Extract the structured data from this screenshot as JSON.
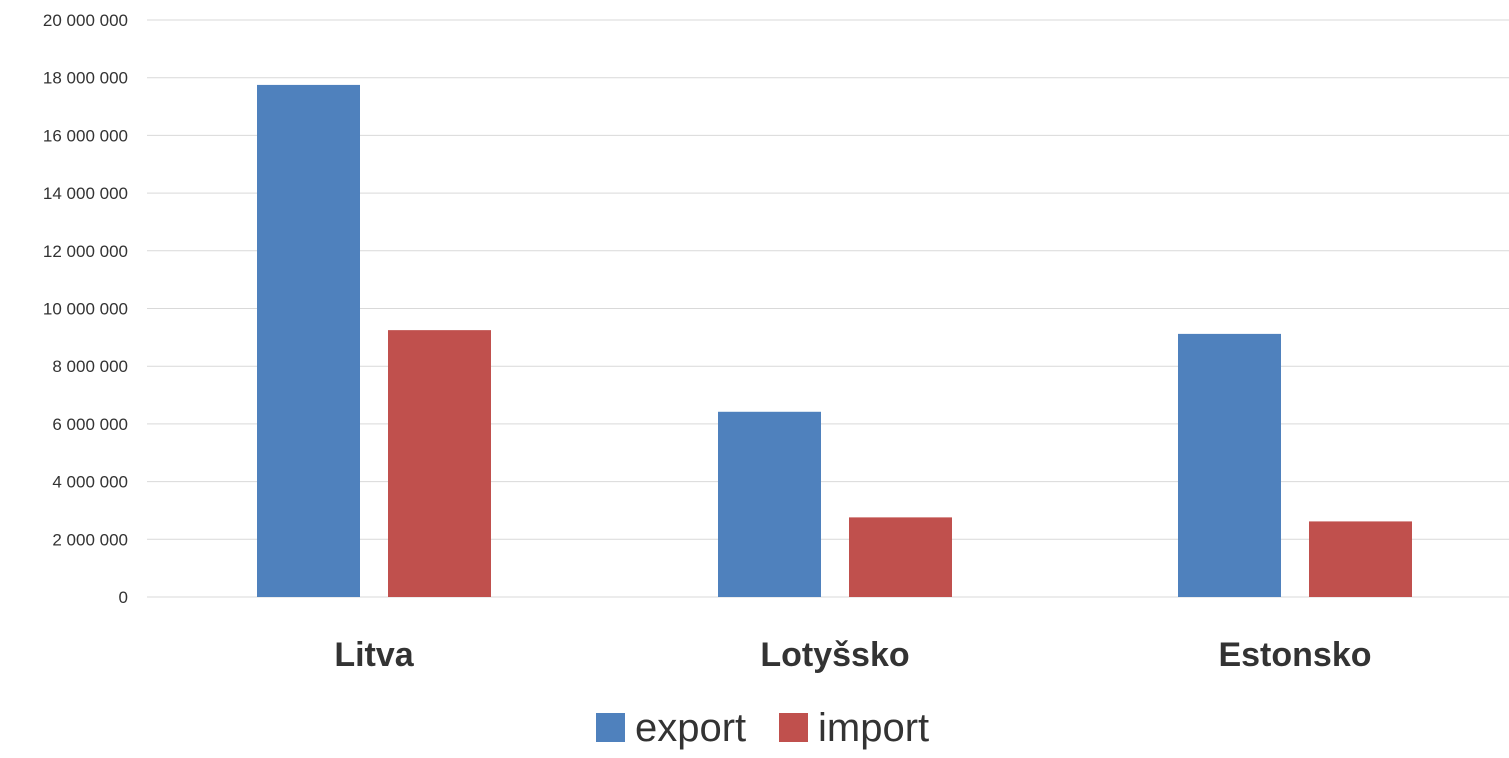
{
  "chart_data": {
    "type": "bar",
    "categories": [
      "Litva",
      "Lotyšsko",
      "Estonsko"
    ],
    "series": [
      {
        "name": "export",
        "color": "#4F81BD",
        "values": [
          17750000,
          6420000,
          9120000
        ]
      },
      {
        "name": "import",
        "color": "#C0504D",
        "values": [
          9250000,
          2760000,
          2620000
        ]
      }
    ],
    "ylim": [
      0,
      20000000
    ],
    "yticks": [
      0,
      2000000,
      4000000,
      6000000,
      8000000,
      10000000,
      12000000,
      14000000,
      16000000,
      18000000,
      20000000
    ],
    "ytick_labels": [
      "0",
      "2 000 000",
      "4 000 000",
      "6 000 000",
      "8 000 000",
      "10 000 000",
      "12 000 000",
      "14 000 000",
      "16 000 000",
      "18 000 000",
      "20 000 000"
    ],
    "grid": true,
    "legend": "bottom-center"
  }
}
